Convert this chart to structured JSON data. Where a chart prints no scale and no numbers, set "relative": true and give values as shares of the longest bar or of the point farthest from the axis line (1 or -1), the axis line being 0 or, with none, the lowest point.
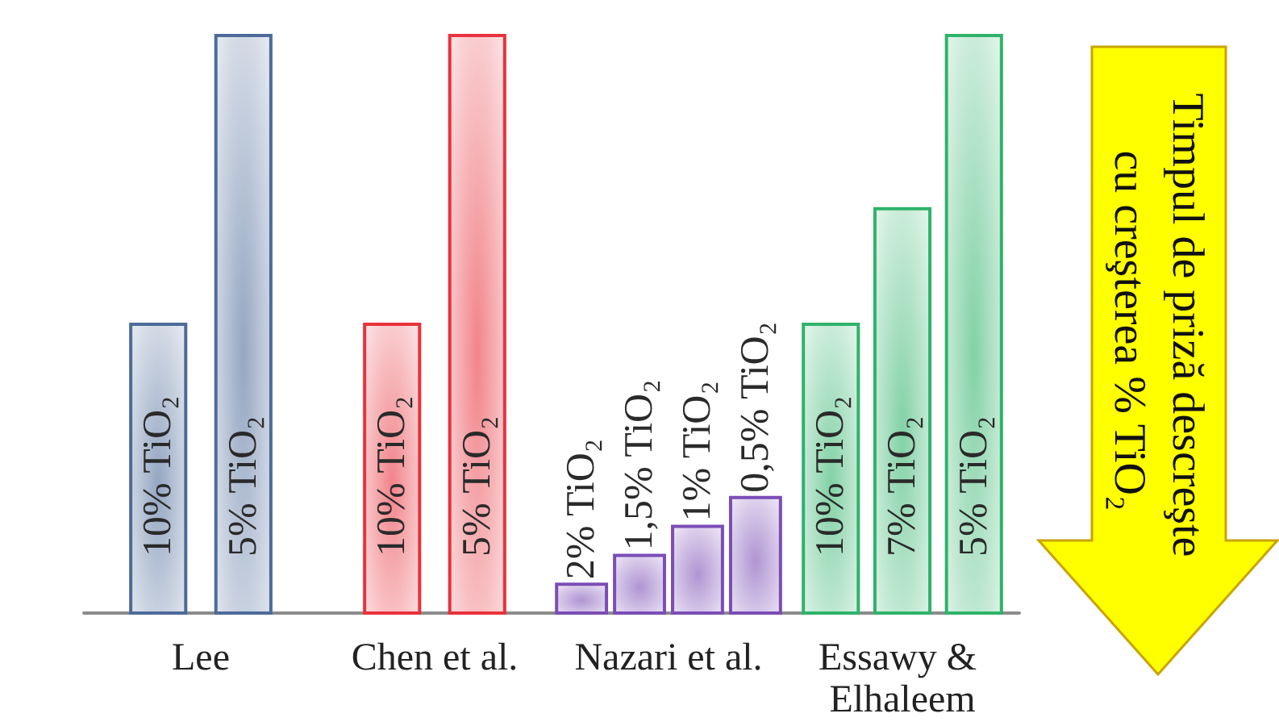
{
  "chart_data": {
    "type": "bar",
    "relative": true,
    "categories": [
      "10% TiO₂",
      "5% TiO₂",
      "10% TiO₂",
      "5% TiO₂",
      "2% TiO₂",
      "1,5% TiO₂",
      "1% TiO₂",
      "0,5% TiO₂",
      "10% TiO₂",
      "7% TiO₂",
      "5% TiO₂"
    ],
    "series": [
      {
        "name": "Lee",
        "color": "#4d6b99",
        "values": [
          0.5,
          1,
          null,
          null,
          null,
          null,
          null,
          null,
          null,
          null,
          null
        ]
      },
      {
        "name": "Chen et al.",
        "color": "#e8323c",
        "values": [
          null,
          null,
          0.5,
          1,
          null,
          null,
          null,
          null,
          null,
          null,
          null
        ]
      },
      {
        "name": "Nazari et al.",
        "color": "#7b4db5",
        "values": [
          null,
          null,
          null,
          null,
          0.05,
          0.1,
          0.15,
          0.2,
          null,
          null,
          null
        ]
      },
      {
        "name": "Essawy & Elhaleem",
        "color": "#2fb36a",
        "values": [
          null,
          null,
          null,
          null,
          null,
          null,
          null,
          null,
          0.5,
          0.7,
          1
        ]
      }
    ],
    "annotations": [
      "Timpul de priză descreşte cu creşterea % TiO₂"
    ]
  }
}
